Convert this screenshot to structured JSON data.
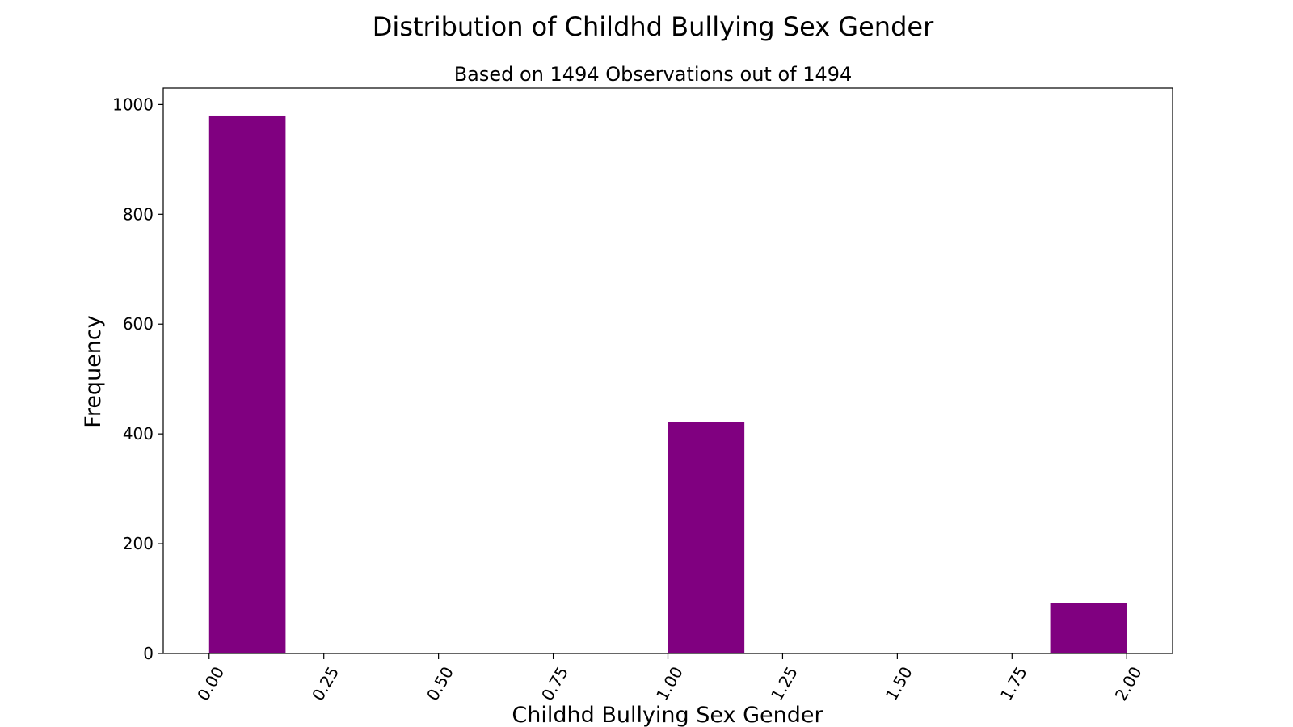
{
  "chart_data": {
    "type": "bar",
    "title": "Distribution of Childhd Bullying Sex Gender",
    "subtitle": "Based on 1494 Observations out of 1494",
    "xlabel": "Childhd Bullying Sex Gender",
    "ylabel": "Frequency",
    "bar_color": "#800080",
    "xlim": [
      -0.1,
      2.1
    ],
    "ylim": [
      0,
      1030
    ],
    "x_ticks": [
      "0.00",
      "0.25",
      "0.50",
      "0.75",
      "1.00",
      "1.25",
      "1.50",
      "1.75",
      "2.00"
    ],
    "y_ticks": [
      "0",
      "200",
      "400",
      "600",
      "800",
      "1000"
    ],
    "grid": false,
    "bars": [
      {
        "x0": 0.0,
        "x1": 0.1667,
        "value": 980
      },
      {
        "x0": 1.0,
        "x1": 1.1667,
        "value": 422
      },
      {
        "x0": 1.8333,
        "x1": 2.0,
        "value": 92
      }
    ]
  }
}
